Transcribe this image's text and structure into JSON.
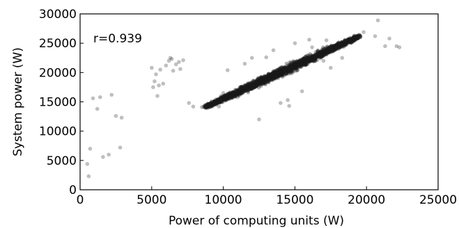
{
  "chart_data": {
    "type": "scatter",
    "title": "",
    "xlabel": "Power of computing units (W)",
    "ylabel": "System power (W)",
    "xlim": [
      0,
      25000
    ],
    "ylim": [
      0,
      30000
    ],
    "xticks": [
      0,
      5000,
      10000,
      15000,
      20000,
      25000
    ],
    "yticks": [
      0,
      5000,
      10000,
      15000,
      20000,
      25000,
      30000
    ],
    "grid": false,
    "legend": "none",
    "point_color": "#1a1a1a",
    "annotation": "r=0.939",
    "main_cluster": {
      "x_from": 8800,
      "y_from": 14200,
      "x_to": 19500,
      "y_to": 26200,
      "spread_y": 900
    },
    "points": [
      [
        500,
        4400
      ],
      [
        600,
        2300
      ],
      [
        700,
        7000
      ],
      [
        900,
        15600
      ],
      [
        1200,
        13800
      ],
      [
        1400,
        15800
      ],
      [
        1600,
        5600
      ],
      [
        2000,
        6000
      ],
      [
        2200,
        16200
      ],
      [
        2500,
        12600
      ],
      [
        2800,
        7200
      ],
      [
        2900,
        12300
      ],
      [
        5000,
        20800
      ],
      [
        5100,
        17500
      ],
      [
        5200,
        18500
      ],
      [
        5300,
        19700
      ],
      [
        5400,
        16000
      ],
      [
        5500,
        17800
      ],
      [
        5600,
        20500
      ],
      [
        5800,
        18100
      ],
      [
        6000,
        21200
      ],
      [
        6200,
        22000
      ],
      [
        6300,
        22500
      ],
      [
        6400,
        22300
      ],
      [
        6500,
        20300
      ],
      [
        6700,
        21400
      ],
      [
        6900,
        21800
      ],
      [
        7000,
        20600
      ],
      [
        7200,
        22100
      ],
      [
        7600,
        14800
      ],
      [
        7900,
        14200
      ],
      [
        8500,
        14100
      ],
      [
        9500,
        14500
      ],
      [
        9700,
        14200
      ],
      [
        10000,
        16500
      ],
      [
        11000,
        15800
      ],
      [
        11500,
        21500
      ],
      [
        12000,
        22500
      ],
      [
        12500,
        12000
      ],
      [
        13500,
        23800
      ],
      [
        14000,
        14800
      ],
      [
        14500,
        15300
      ],
      [
        14600,
        14300
      ],
      [
        15500,
        16800
      ],
      [
        16200,
        24300
      ],
      [
        17200,
        25500
      ],
      [
        17500,
        20800
      ],
      [
        18300,
        22500
      ],
      [
        19800,
        26900
      ],
      [
        20600,
        26200
      ],
      [
        20800,
        28900
      ],
      [
        21300,
        24500
      ],
      [
        21600,
        25800
      ],
      [
        22100,
        24500
      ],
      [
        22300,
        24300
      ],
      [
        16000,
        25600
      ],
      [
        13000,
        22600
      ],
      [
        15000,
        25000
      ],
      [
        10300,
        20400
      ],
      [
        17000,
        22000
      ]
    ]
  }
}
